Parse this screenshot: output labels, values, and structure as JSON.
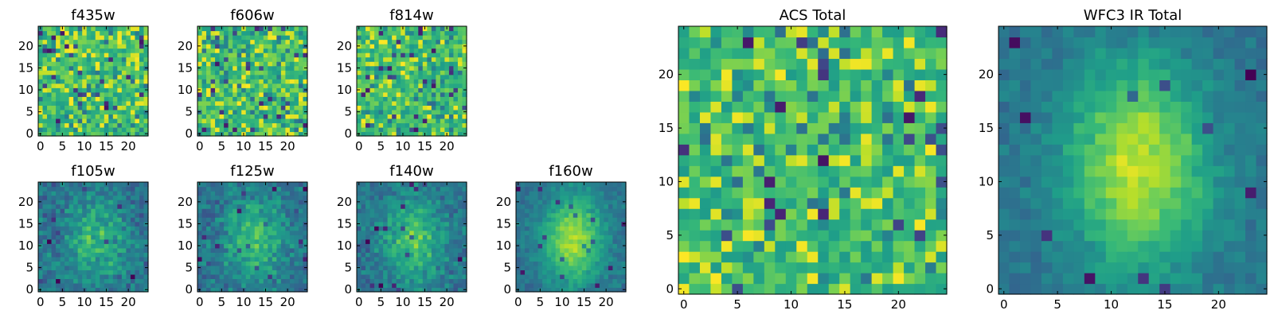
{
  "chart_data": [
    {
      "type": "heatmap",
      "title": "f435w",
      "grid_size": 25,
      "colormap": "viridis",
      "pattern": "noise",
      "seed": 11,
      "xlim": [
        0,
        24
      ],
      "ylim": [
        0,
        24
      ],
      "xticks": [
        0,
        5,
        10,
        15,
        20
      ],
      "yticks": [
        0,
        5,
        10,
        15,
        20
      ]
    },
    {
      "type": "heatmap",
      "title": "f606w",
      "grid_size": 25,
      "colormap": "viridis",
      "pattern": "noise",
      "seed": 23,
      "xlim": [
        0,
        24
      ],
      "ylim": [
        0,
        24
      ],
      "xticks": [
        0,
        5,
        10,
        15,
        20
      ],
      "yticks": [
        0,
        5,
        10,
        15,
        20
      ]
    },
    {
      "type": "heatmap",
      "title": "f814w",
      "grid_size": 25,
      "colormap": "viridis",
      "pattern": "noise",
      "seed": 37,
      "xlim": [
        0,
        24
      ],
      "ylim": [
        0,
        24
      ],
      "xticks": [
        0,
        5,
        10,
        15,
        20
      ],
      "yticks": [
        0,
        5,
        10,
        15,
        20
      ]
    },
    {
      "type": "heatmap",
      "title": "f105w",
      "grid_size": 25,
      "colormap": "viridis",
      "pattern": "blob",
      "seed": 41,
      "blob_strength": 0.45,
      "xlim": [
        0,
        24
      ],
      "ylim": [
        0,
        24
      ],
      "xticks": [
        0,
        5,
        10,
        15,
        20
      ],
      "yticks": [
        0,
        5,
        10,
        15,
        20
      ]
    },
    {
      "type": "heatmap",
      "title": "f125w",
      "grid_size": 25,
      "colormap": "viridis",
      "pattern": "blob",
      "seed": 53,
      "blob_strength": 0.5,
      "xlim": [
        0,
        24
      ],
      "ylim": [
        0,
        24
      ],
      "xticks": [
        0,
        5,
        10,
        15,
        20
      ],
      "yticks": [
        0,
        5,
        10,
        15,
        20
      ]
    },
    {
      "type": "heatmap",
      "title": "f140w",
      "grid_size": 25,
      "colormap": "viridis",
      "pattern": "blob",
      "seed": 67,
      "blob_strength": 0.55,
      "xlim": [
        0,
        24
      ],
      "ylim": [
        0,
        24
      ],
      "xticks": [
        0,
        5,
        10,
        15,
        20
      ],
      "yticks": [
        0,
        5,
        10,
        15,
        20
      ]
    },
    {
      "type": "heatmap",
      "title": "f160w",
      "grid_size": 25,
      "colormap": "viridis",
      "pattern": "blob",
      "seed": 79,
      "blob_strength": 0.8,
      "xlim": [
        0,
        24
      ],
      "ylim": [
        0,
        24
      ],
      "xticks": [
        0,
        5,
        10,
        15,
        20
      ],
      "yticks": [
        0,
        5,
        10,
        15,
        20
      ]
    },
    {
      "type": "heatmap",
      "title": "ACS Total",
      "grid_size": 25,
      "colormap": "viridis",
      "pattern": "noise",
      "seed": 97,
      "xlim": [
        0,
        24
      ],
      "ylim": [
        0,
        24
      ],
      "xticks": [
        0,
        5,
        10,
        15,
        20
      ],
      "yticks": [
        0,
        5,
        10,
        15,
        20
      ]
    },
    {
      "type": "heatmap",
      "title": "WFC3 IR Total",
      "grid_size": 25,
      "colormap": "viridis",
      "pattern": "blob",
      "seed": 131,
      "blob_strength": 0.85,
      "xlim": [
        0,
        24
      ],
      "ylim": [
        0,
        24
      ],
      "xticks": [
        0,
        5,
        10,
        15,
        20
      ],
      "yticks": [
        0,
        5,
        10,
        15,
        20
      ]
    }
  ]
}
